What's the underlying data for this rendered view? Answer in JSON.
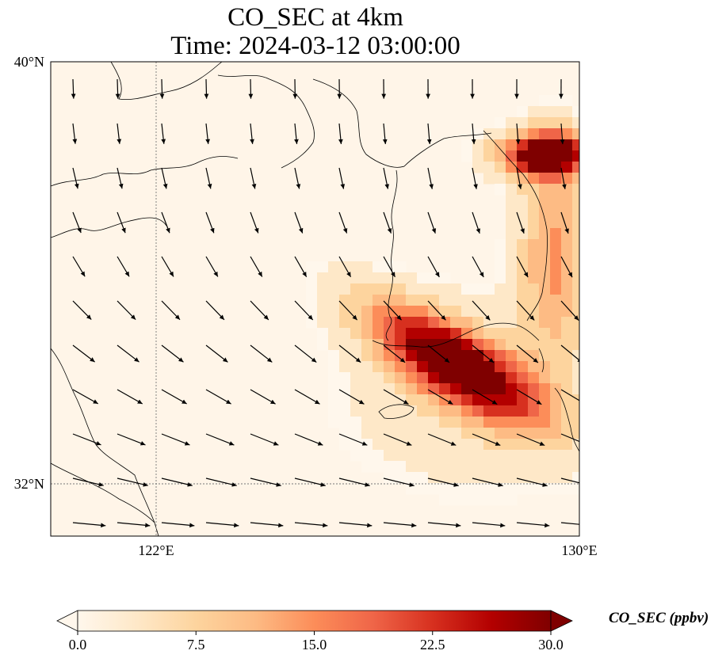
{
  "title_line1": "CO_SEC at 4km",
  "title_line2": "Time: 2024-03-12 03:00:00",
  "colorbar": {
    "label": "CO_SEC (ppbv)",
    "ticks": [
      "0.0",
      "7.5",
      "15.0",
      "22.5",
      "30.0"
    ],
    "min": 0,
    "max": 30,
    "extend": "both",
    "colormap": [
      "#fff7ec",
      "#fee8c8",
      "#fdd49e",
      "#fdbb84",
      "#fc8d59",
      "#ef6548",
      "#d7301f",
      "#b30000",
      "#7f0000"
    ]
  },
  "map": {
    "lat_labels": [
      "40°N",
      "32°N"
    ],
    "lon_labels": [
      "122°E",
      "130°E"
    ],
    "lat_range": [
      31,
      40
    ],
    "lon_range": [
      120,
      130
    ],
    "gridlines": "dotted",
    "wind_vectors": "shown",
    "colors": {
      "land_outline": "#000000",
      "background": "#fff5e8"
    }
  },
  "chart_data": {
    "type": "heatmap",
    "title": "CO_SEC at 4km",
    "subtitle": "Time: 2024-03-12 03:00:00",
    "variable": "CO_SEC",
    "units": "ppbv",
    "value_range": [
      0,
      30
    ],
    "x_axis": {
      "ticks": [
        "122°E",
        "130°E"
      ],
      "range": [
        120,
        130
      ]
    },
    "y_axis": {
      "ticks": [
        "32°N",
        "40°N"
      ],
      "range": [
        31,
        40
      ]
    },
    "hotspots": [
      {
        "region": "southern Korean peninsula to sea south-east of it",
        "level": "≥30"
      },
      {
        "region": "north-east corner (near 38.5°N 129.5°E)",
        "level": "≥30"
      },
      {
        "region": "east coast of Korea",
        "level": "10–20"
      }
    ]
  }
}
